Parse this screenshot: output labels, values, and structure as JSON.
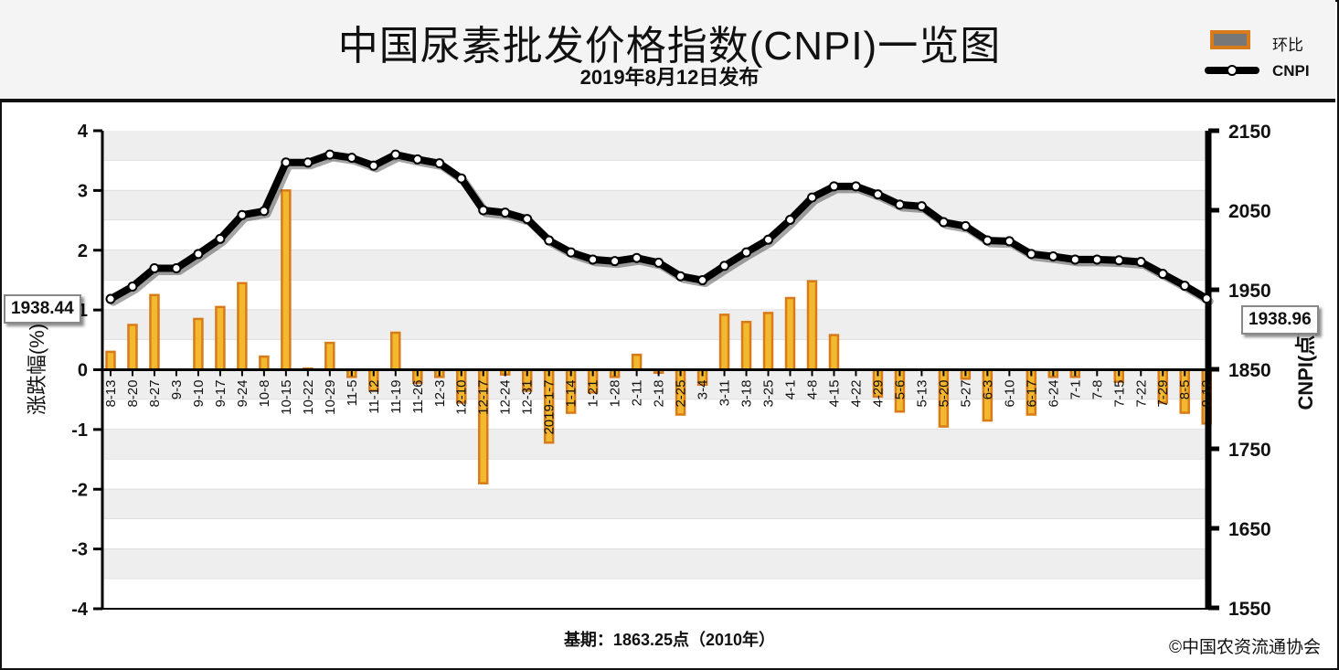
{
  "header": {
    "title": "中国尿素批发价格指数(CNPI)一览图",
    "subtitle": "2019年8月12日发布"
  },
  "legend": {
    "bar_label": "环比",
    "line_label": "CNPI"
  },
  "callouts": {
    "start_value": "1938.44",
    "end_value": "1938.96"
  },
  "footer": {
    "base_note": "基期：1863.25点（2010年）",
    "copyright": "©中国农资流通协会"
  },
  "colors": {
    "bar_fill": "#f2b82e",
    "bar_edge": "#d87b1a",
    "line": "#000000",
    "marker_fill": "#ffffff",
    "grid_band": "#eeeeee"
  },
  "chart_data": {
    "type": "bar+line",
    "categories": [
      "8-13",
      "8-20",
      "8-27",
      "9-3",
      "9-10",
      "9-17",
      "9-24",
      "10-8",
      "10-15",
      "10-22",
      "10-29",
      "11-5",
      "11-12",
      "11-19",
      "11-26",
      "12-3",
      "12-10",
      "12-17",
      "12-24",
      "12-31",
      "2019-1-7",
      "1-14",
      "1-21",
      "1-28",
      "2-11",
      "2-18",
      "2-25",
      "3-4",
      "3-11",
      "3-18",
      "3-25",
      "4-1",
      "4-8",
      "4-15",
      "4-22",
      "4-29",
      "5-6",
      "5-13",
      "5-20",
      "5-27",
      "6-3",
      "6-10",
      "6-17",
      "6-24",
      "7-1",
      "7-8",
      "7-15",
      "7-22",
      "7-29",
      "8-5",
      "8-12"
    ],
    "series": [
      {
        "name": "环比",
        "type": "bar",
        "axis": "left",
        "values": [
          0.3,
          0.75,
          1.25,
          0.0,
          0.85,
          1.05,
          1.45,
          0.22,
          3.0,
          0.02,
          0.45,
          -0.12,
          -0.35,
          0.62,
          -0.22,
          -0.12,
          -0.55,
          -1.9,
          -0.08,
          -0.35,
          -1.22,
          -0.72,
          -0.38,
          -0.12,
          0.25,
          -0.05,
          -0.75,
          -0.25,
          0.92,
          0.8,
          0.95,
          1.2,
          1.48,
          0.58,
          0.0,
          -0.45,
          -0.7,
          0.0,
          -0.95,
          -0.15,
          -0.85,
          0.0,
          -0.75,
          -0.12,
          -0.12,
          0.0,
          -0.2,
          0.0,
          -0.55,
          -0.72,
          -0.9
        ]
      },
      {
        "name": "CNPI",
        "type": "line",
        "axis": "right",
        "values": [
          1938.44,
          1954,
          1977,
          1977,
          1995,
          2014,
          2044,
          2049,
          2110,
          2110,
          2120,
          2116,
          2106,
          2120,
          2114,
          2109,
          2090,
          2050,
          2047,
          2039,
          2012,
          1997,
          1988,
          1986,
          1990,
          1984,
          1967,
          1962,
          1980,
          1997,
          2013,
          2038,
          2066,
          2080,
          2080,
          2070,
          2057,
          2055,
          2035,
          2030,
          2012,
          2011,
          1995,
          1992,
          1988,
          1988,
          1987,
          1985,
          1970,
          1955,
          1938.96
        ]
      }
    ],
    "y_left": {
      "label": "涨跌幅(%)",
      "min": -4,
      "max": 4,
      "ticks": [
        -4,
        -3,
        -2,
        -1,
        0,
        1,
        2,
        3,
        4
      ]
    },
    "y_right": {
      "label": "CNPI(点)",
      "min": 1550,
      "max": 2180,
      "ticks": [
        1550,
        1650,
        1750,
        1850,
        1950,
        2050,
        2150
      ]
    },
    "grid": true,
    "legend_position": "top-right"
  }
}
